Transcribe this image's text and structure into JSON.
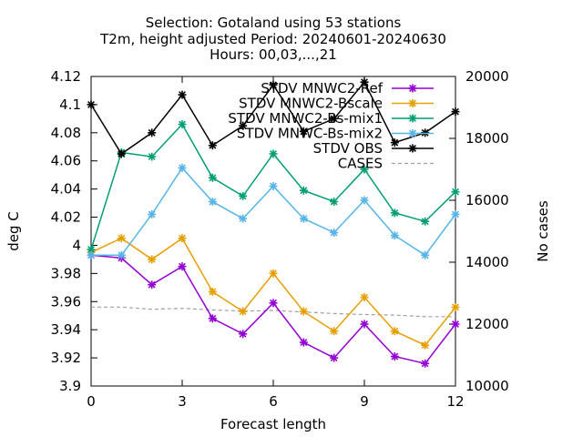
{
  "chart_data": {
    "type": "line",
    "title_lines": [
      "Selection: Gotaland using    53 stations",
      "T2m, height adjusted   Period: 20240601-20240630",
      "Hours: 00,03,...,21"
    ],
    "xlabel": "Forecast length",
    "ylabel": "deg C",
    "y2label": "No cases",
    "xlim": [
      0,
      12
    ],
    "ylim": [
      3.9,
      4.12
    ],
    "y2lim": [
      10000,
      20000
    ],
    "xticks": [
      0,
      3,
      6,
      9,
      12
    ],
    "xtick_labels": [
      "0",
      "3",
      "6",
      "9",
      "12"
    ],
    "yticks": [
      3.9,
      3.92,
      3.94,
      3.96,
      3.98,
      4.0,
      4.02,
      4.04,
      4.06,
      4.08,
      4.1,
      4.12
    ],
    "ytick_labels": [
      "3.9",
      "3.92",
      "3.94",
      "3.96",
      "3.98",
      "4",
      "4.02",
      "4.04",
      "4.06",
      "4.08",
      "4.1",
      "4.12"
    ],
    "y2ticks": [
      10000,
      12000,
      14000,
      16000,
      18000,
      20000
    ],
    "y2tick_labels": [
      "10000",
      "12000",
      "14000",
      "16000",
      "18000",
      "20000"
    ],
    "grid": false,
    "legend_position": "top-right",
    "x": [
      0,
      1,
      2,
      3,
      4,
      5,
      6,
      7,
      8,
      9,
      10,
      11,
      12
    ],
    "series": [
      {
        "name": "STDV MNWC2-Ref",
        "color": "#9400d3",
        "axis": "y",
        "values": [
          3.993,
          3.991,
          3.972,
          3.985,
          3.948,
          3.937,
          3.959,
          3.931,
          3.92,
          3.944,
          3.921,
          3.916,
          3.944
        ]
      },
      {
        "name": "STDV MNWC2-Bscale",
        "color": "#e69f00",
        "axis": "y",
        "values": [
          3.995,
          4.005,
          3.99,
          4.005,
          3.967,
          3.953,
          3.98,
          3.953,
          3.939,
          3.963,
          3.939,
          3.929,
          3.956
        ]
      },
      {
        "name": "STDV MNWC2-Bs-mix1",
        "color": "#009e73",
        "axis": "y",
        "values": [
          3.997,
          4.066,
          4.063,
          4.086,
          4.048,
          4.035,
          4.065,
          4.039,
          4.031,
          4.054,
          4.023,
          4.017,
          4.038
        ]
      },
      {
        "name": "STDV MNWC-Bs-mix2",
        "color": "#56b4e9",
        "axis": "y",
        "values": [
          3.993,
          3.993,
          4.022,
          4.055,
          4.031,
          4.019,
          4.042,
          4.019,
          4.009,
          4.032,
          4.007,
          3.993,
          4.022
        ]
      },
      {
        "name": "STDV OBS",
        "color": "#000000",
        "axis": "y",
        "values": [
          4.1,
          4.065,
          4.08,
          4.107,
          4.071,
          4.085,
          4.114,
          4.081,
          4.09,
          4.116,
          4.073,
          4.08,
          4.095
        ]
      },
      {
        "name": "CASES",
        "color": "#a0a0a0",
        "axis": "y2",
        "dashed": true,
        "values": [
          12550,
          12550,
          12480,
          12510,
          12460,
          12420,
          12440,
          12390,
          12340,
          12310,
          12290,
          12240,
          12240
        ]
      }
    ]
  }
}
